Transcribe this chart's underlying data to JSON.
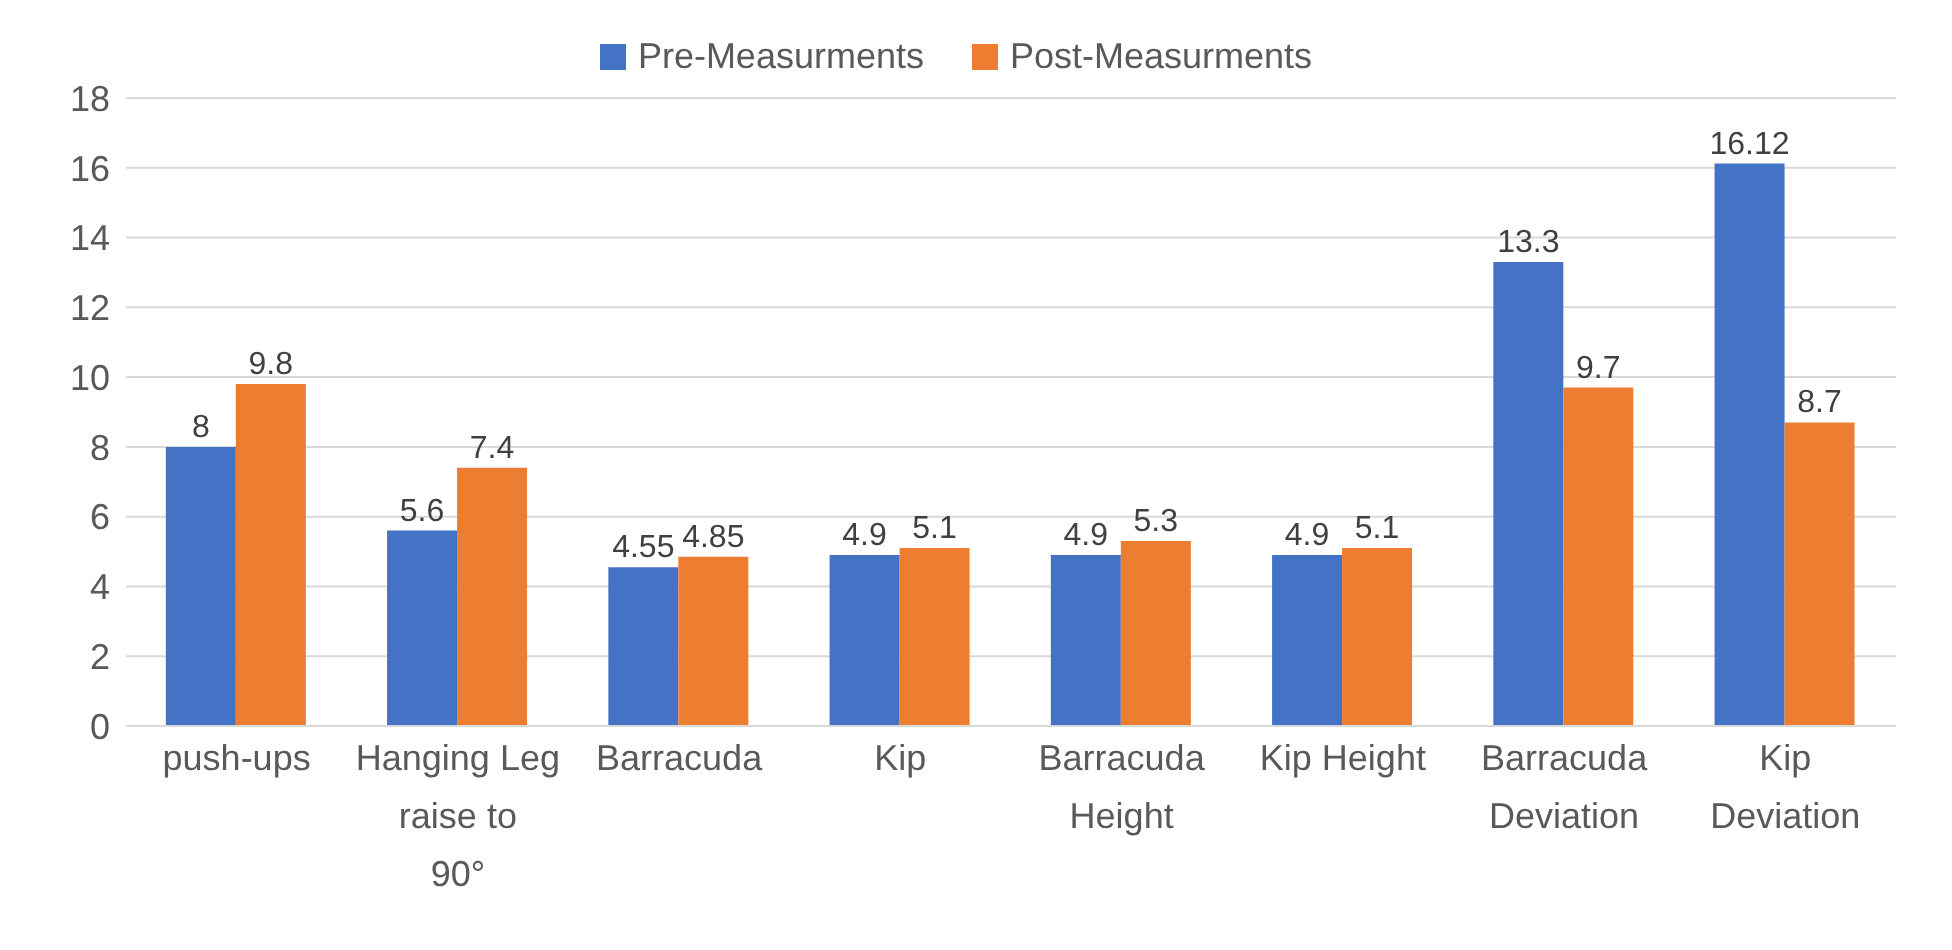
{
  "chart_data": {
    "type": "bar",
    "categories": [
      "push-ups",
      "Hanging Leg raise to 90°",
      "Barracuda",
      "Kip",
      "Barracuda Height",
      "Kip Height",
      "Barracuda Deviation",
      "Kip Deviation"
    ],
    "series": [
      {
        "name": "Pre-Measurments",
        "color": "#4472c4",
        "values": [
          8,
          5.6,
          4.55,
          4.9,
          4.9,
          4.9,
          13.3,
          16.12
        ]
      },
      {
        "name": "Post-Measurments",
        "color": "#ed7d31",
        "values": [
          9.8,
          7.4,
          4.85,
          5.1,
          5.3,
          5.1,
          9.7,
          8.7
        ]
      }
    ],
    "ylim": [
      0,
      18
    ],
    "yticks": [
      0,
      2,
      4,
      6,
      8,
      10,
      12,
      14,
      16,
      18
    ],
    "grid": "y",
    "legend": "top",
    "data_labels": true
  }
}
